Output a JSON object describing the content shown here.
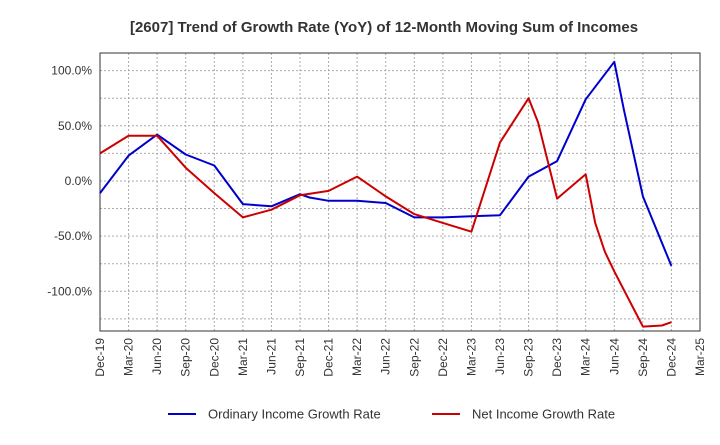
{
  "chart_data": {
    "type": "line",
    "title": "[2607]  Trend of Growth Rate (YoY) of 12-Month Moving Sum of Incomes",
    "xlabel": "",
    "ylabel": "",
    "x_tick_labels": [
      "Dec-19",
      "Mar-20",
      "Jun-20",
      "Sep-20",
      "Dec-20",
      "Mar-21",
      "Jun-21",
      "Sep-21",
      "Dec-21",
      "Mar-22",
      "Jun-22",
      "Sep-22",
      "Dec-22",
      "Mar-23",
      "Jun-23",
      "Sep-23",
      "Dec-23",
      "Mar-24",
      "Jun-24",
      "Sep-24",
      "Dec-24",
      "Mar-25"
    ],
    "y_ticks": [
      100,
      50,
      0,
      -50,
      -100
    ],
    "y_tick_labels": [
      "100.0%",
      "50.0%",
      "0.0%",
      "-50.0%",
      "-100.0%"
    ],
    "ylim": [
      -136,
      116
    ],
    "grid": true,
    "legend_position": "bottom",
    "series": [
      {
        "name": "Ordinary Income Growth Rate",
        "color": "#0000cc",
        "points": [
          [
            "Dec-19",
            -11
          ],
          [
            "Mar-20",
            23
          ],
          [
            "Jun-20",
            42
          ],
          [
            "Sep-20",
            24
          ],
          [
            "Dec-20",
            14
          ],
          [
            "Mar-21",
            -21
          ],
          [
            "Jun-21",
            -23
          ],
          [
            "Sep-21",
            -12
          ],
          [
            "Oct-21",
            -15
          ],
          [
            "Dec-21",
            -18
          ],
          [
            "Mar-22",
            -18
          ],
          [
            "Jun-22",
            -20
          ],
          [
            "Sep-22",
            -33
          ],
          [
            "Dec-22",
            -33
          ],
          [
            "Mar-23",
            -32
          ],
          [
            "Jun-23",
            -31
          ],
          [
            "Sep-23",
            4
          ],
          [
            "Dec-23",
            18
          ],
          [
            "Mar-24",
            74
          ],
          [
            "Jun-24",
            108
          ],
          [
            "Jul-24",
            65
          ],
          [
            "Sep-24",
            -14
          ],
          [
            "Dec-24",
            -77
          ]
        ]
      },
      {
        "name": "Net Income Growth Rate",
        "color": "#cc0000",
        "points": [
          [
            "Dec-19",
            25
          ],
          [
            "Mar-20",
            41
          ],
          [
            "Jun-20",
            41
          ],
          [
            "Sep-20",
            12
          ],
          [
            "Dec-20",
            -11
          ],
          [
            "Mar-21",
            -33
          ],
          [
            "Jun-21",
            -26
          ],
          [
            "Sep-21",
            -13
          ],
          [
            "Dec-21",
            -9
          ],
          [
            "Mar-22",
            4
          ],
          [
            "Jun-22",
            -14
          ],
          [
            "Sep-22",
            -30
          ],
          [
            "Dec-22",
            -38
          ],
          [
            "Mar-23",
            -46
          ],
          [
            "Jun-23",
            35
          ],
          [
            "Sep-23",
            75
          ],
          [
            "Oct-23",
            53
          ],
          [
            "Dec-23",
            -16
          ],
          [
            "Mar-24",
            6
          ],
          [
            "Apr-24",
            -38
          ],
          [
            "May-24",
            -64
          ],
          [
            "Jun-24",
            -82
          ],
          [
            "Sep-24",
            -132
          ],
          [
            "Nov-24",
            -131
          ],
          [
            "Dec-24",
            -128
          ]
        ]
      }
    ]
  }
}
